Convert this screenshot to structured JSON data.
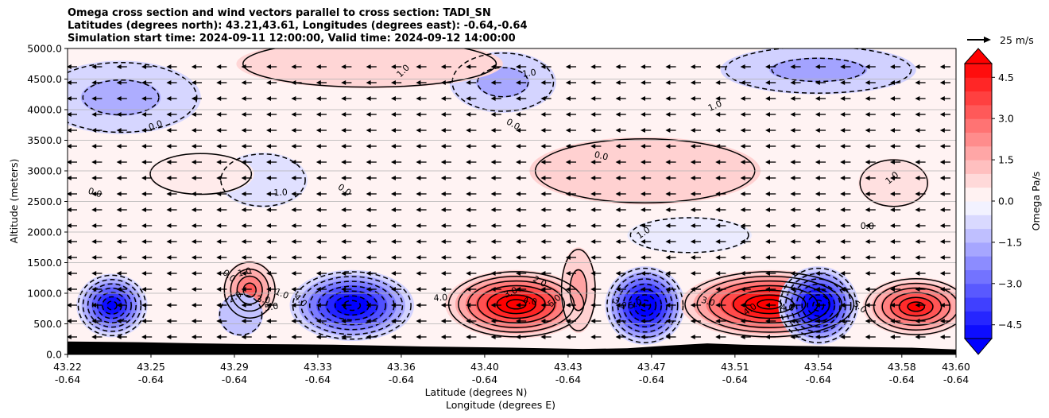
{
  "chart_data": {
    "type": "heatmap",
    "title_lines": [
      "Omega cross section and wind vectors parallel to cross section: TADI_SN",
      "Latitudes (degrees north): 43.21,43.61, Longitudes (degrees east): -0.64,-0.64",
      "Simulation start time: 2024-09-11 12:00:00, Valid time: 2024-09-12 14:00:00"
    ],
    "xlabel_lines": [
      "Latitude (degrees N)",
      "Longitude (degrees E)"
    ],
    "ylabel": "Altitude (meters)",
    "x_ticks": [
      {
        "lat": "43.22",
        "lon": "-0.64"
      },
      {
        "lat": "43.25",
        "lon": "-0.64"
      },
      {
        "lat": "43.29",
        "lon": "-0.64"
      },
      {
        "lat": "43.33",
        "lon": "-0.64"
      },
      {
        "lat": "43.36",
        "lon": "-0.64"
      },
      {
        "lat": "43.40",
        "lon": "-0.64"
      },
      {
        "lat": "43.43",
        "lon": "-0.64"
      },
      {
        "lat": "43.47",
        "lon": "-0.64"
      },
      {
        "lat": "43.51",
        "lon": "-0.64"
      },
      {
        "lat": "43.54",
        "lon": "-0.64"
      },
      {
        "lat": "43.58",
        "lon": "-0.64"
      },
      {
        "lat": "43.60",
        "lon": "-0.64"
      }
    ],
    "y_ticks": [
      "0.0",
      "500.0",
      "1000.0",
      "1500.0",
      "2000.0",
      "2500.0",
      "3000.0",
      "3500.0",
      "4000.0",
      "4500.0",
      "5000.0"
    ],
    "ylim": [
      0,
      5000
    ],
    "grid": "horizontal",
    "colorbar": {
      "label": "Omega Pa/s",
      "ticks": [
        "−4.5",
        "−3.0",
        "−1.5",
        "0.0",
        "1.5",
        "3.0",
        "4.5"
      ],
      "range": [
        -5,
        5
      ],
      "min_color": "#0000ff",
      "max_color": "#ff0000",
      "extend": "both"
    },
    "quiver_key": "25 m/s",
    "terrain_color": "#000000",
    "contour_labels": [
      "1.0",
      "1.0",
      "0.0",
      "1.0",
      "0.0",
      "1.0",
      "1.0",
      "0.0",
      "0.0",
      "0.0",
      "1.0",
      "0.0",
      "0.0",
      "1.0",
      "1.0",
      "2.0",
      "3.0",
      "4.0",
      "5.0",
      "2.0",
      "3.0",
      "4.0",
      "5.0",
      "4.0",
      "3.0",
      "5.0",
      "3.0",
      "4.0",
      "4.0",
      "5.0"
    ],
    "cells": [
      {
        "x": 0.05,
        "y": 800,
        "value": -5.5,
        "rx": 0.04,
        "ry": 520
      },
      {
        "x": 0.205,
        "y": 1050,
        "value": 3.3,
        "rx": 0.03,
        "ry": 480
      },
      {
        "x": 0.195,
        "y": 650,
        "value": -1.2,
        "rx": 0.025,
        "ry": 350
      },
      {
        "x": 0.32,
        "y": 800,
        "value": -6.0,
        "rx": 0.07,
        "ry": 580
      },
      {
        "x": 0.505,
        "y": 820,
        "value": 6.0,
        "rx": 0.08,
        "ry": 560
      },
      {
        "x": 0.575,
        "y": 1050,
        "value": 1.8,
        "rx": 0.02,
        "ry": 700
      },
      {
        "x": 0.65,
        "y": 800,
        "value": -6.5,
        "rx": 0.045,
        "ry": 640
      },
      {
        "x": 0.79,
        "y": 820,
        "value": 6.2,
        "rx": 0.1,
        "ry": 560
      },
      {
        "x": 0.845,
        "y": 800,
        "value": -6.5,
        "rx": 0.045,
        "ry": 640
      },
      {
        "x": 0.955,
        "y": 780,
        "value": 5.0,
        "rx": 0.06,
        "ry": 480
      },
      {
        "x": 0.06,
        "y": 4200,
        "value": -1.6,
        "rx": 0.09,
        "ry": 600
      },
      {
        "x": 0.49,
        "y": 4450,
        "value": -1.7,
        "rx": 0.06,
        "ry": 500
      },
      {
        "x": 0.845,
        "y": 4650,
        "value": -1.8,
        "rx": 0.11,
        "ry": 400
      },
      {
        "x": 0.34,
        "y": 4750,
        "value": 0.8,
        "rx": 0.15,
        "ry": 400
      },
      {
        "x": 0.65,
        "y": 3000,
        "value": 0.9,
        "rx": 0.13,
        "ry": 550
      },
      {
        "x": 0.22,
        "y": 2850,
        "value": -0.6,
        "rx": 0.05,
        "ry": 450
      },
      {
        "x": 0.15,
        "y": 2950,
        "value": 0.4,
        "rx": 0.06,
        "ry": 350
      },
      {
        "x": 0.93,
        "y": 2800,
        "value": 0.6,
        "rx": 0.04,
        "ry": 400
      },
      {
        "x": 0.7,
        "y": 1950,
        "value": -0.4,
        "rx": 0.07,
        "ry": 300
      }
    ],
    "winds": {
      "u": -11.0,
      "v": 0.0
    }
  }
}
